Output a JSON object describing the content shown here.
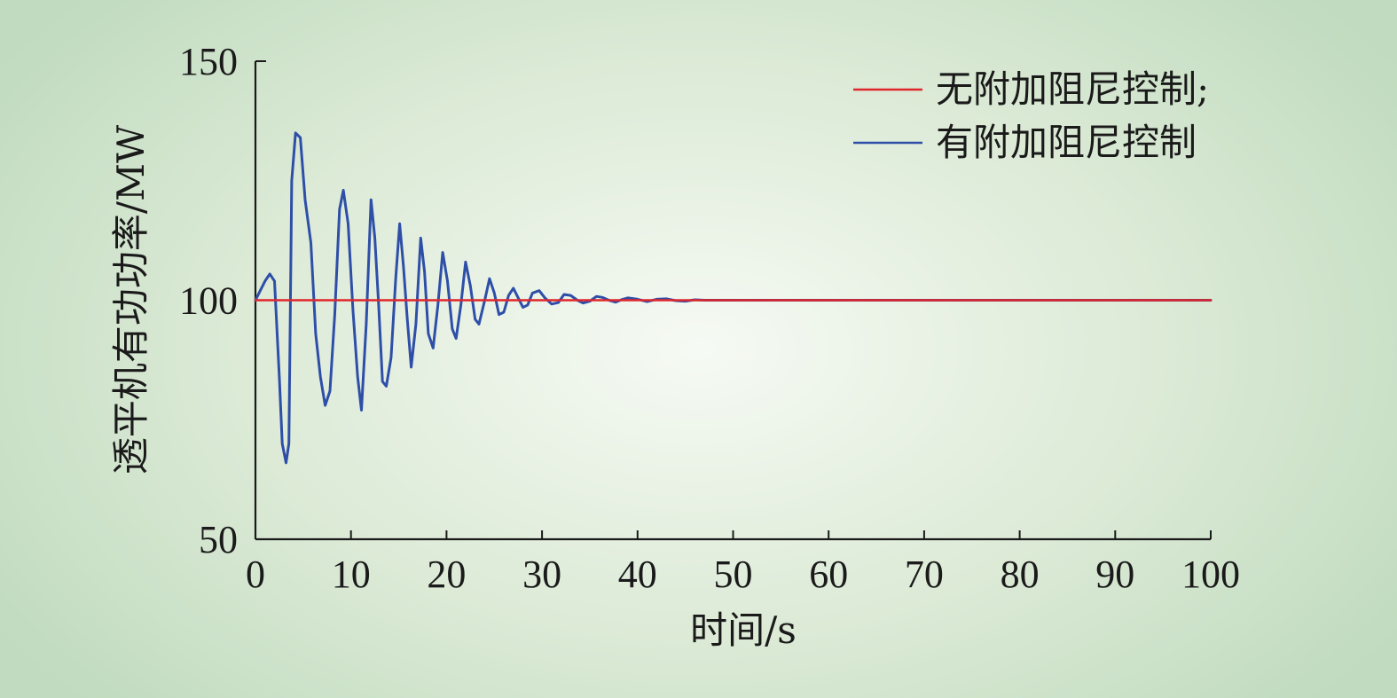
{
  "chart_data": {
    "type": "line",
    "xlabel": "时间/s",
    "ylabel": "透平机有功功率/MW",
    "xlim": [
      0,
      100
    ],
    "ylim": [
      50,
      150
    ],
    "xticks": [
      0,
      10,
      20,
      30,
      40,
      50,
      60,
      70,
      80,
      90,
      100
    ],
    "yticks": [
      50,
      100,
      150
    ],
    "grid": false,
    "legend_position": "top-right",
    "series": [
      {
        "name": "无附加阻尼控制;",
        "color": "#e0262b",
        "x": [
          0,
          100
        ],
        "y": [
          100,
          100
        ]
      },
      {
        "name": "有附加阻尼控制",
        "color": "#2e4fa8",
        "x": [
          0,
          0.5,
          1.0,
          1.5,
          2.0,
          2.5,
          2.8,
          3.2,
          3.5,
          3.8,
          4.2,
          4.7,
          5.2,
          5.8,
          6.3,
          6.8,
          7.3,
          7.8,
          8.3,
          8.8,
          9.2,
          9.7,
          10.2,
          10.7,
          11.1,
          11.6,
          12.1,
          12.5,
          12.9,
          13.3,
          13.7,
          14.2,
          14.7,
          15.1,
          15.5,
          15.9,
          16.3,
          16.8,
          17.3,
          17.7,
          18.1,
          18.6,
          19.1,
          19.6,
          20.1,
          20.6,
          21.0,
          21.5,
          22.0,
          22.5,
          23.0,
          23.4,
          24.0,
          24.5,
          25.0,
          25.5,
          26.0,
          26.5,
          27.0,
          27.5,
          28.0,
          28.5,
          29.0,
          29.7,
          30.3,
          31.0,
          31.7,
          32.3,
          33.0,
          33.7,
          34.3,
          35.0,
          35.7,
          36.3,
          37.0,
          37.7,
          38.3,
          39.0,
          40.0,
          41.0,
          42.0,
          43.0,
          44.0,
          45.0,
          46.0,
          47.0,
          48.0,
          50.0,
          100.0
        ],
        "y": [
          100,
          102,
          104,
          105.5,
          104,
          84,
          70,
          66,
          70,
          125,
          135,
          134,
          121,
          112,
          93,
          84,
          78,
          81,
          97,
          119,
          123,
          116,
          98,
          84,
          77,
          95,
          121,
          113,
          99,
          83,
          82,
          88,
          105,
          116,
          107,
          96,
          86,
          95,
          113,
          106,
          93,
          90,
          99,
          110,
          104,
          94,
          92,
          99,
          108,
          103,
          96,
          95,
          100,
          104.5,
          101.5,
          97,
          97.5,
          101,
          102.5,
          100.5,
          98.5,
          99,
          101.5,
          102,
          100.5,
          99.2,
          99.5,
          101.2,
          101,
          100,
          99.4,
          99.8,
          100.8,
          100.6,
          100,
          99.6,
          100.1,
          100.5,
          100.2,
          99.7,
          100.2,
          100.3,
          99.9,
          99.8,
          100.1,
          100,
          100,
          100,
          100
        ]
      }
    ]
  }
}
